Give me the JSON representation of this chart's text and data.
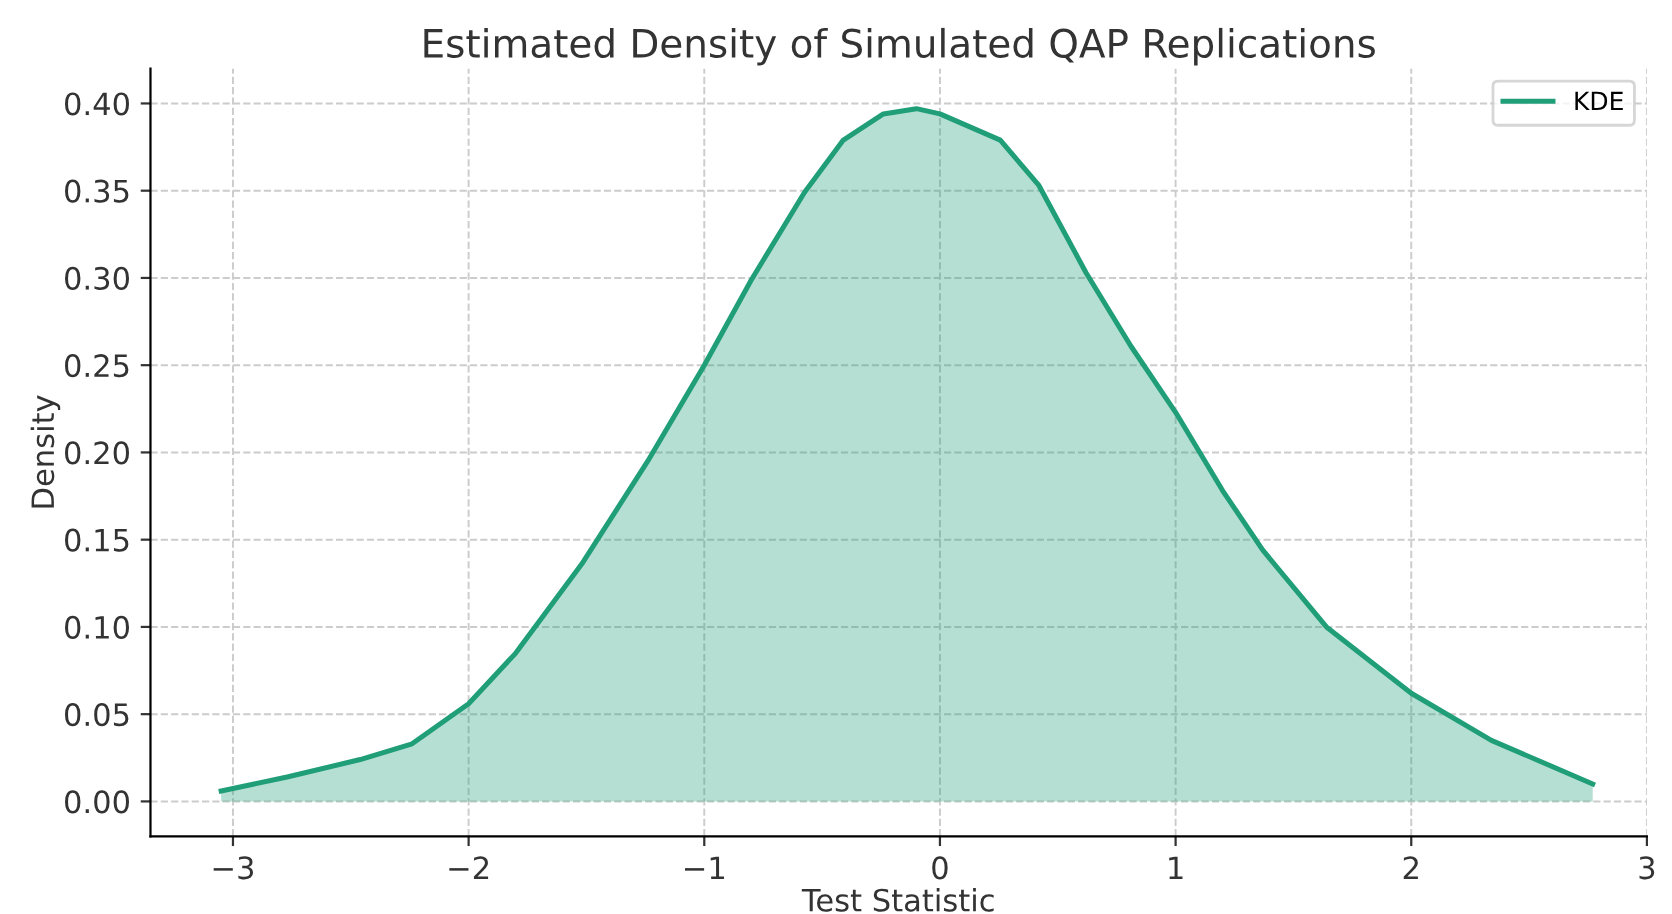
{
  "chart_data": {
    "type": "area",
    "title": "Estimated Density of Simulated QAP Replications",
    "xlabel": "Test Statistic",
    "ylabel": "Density",
    "series": [
      {
        "name": "KDE",
        "color": "#1f9e78",
        "x": [
          -3.05,
          -2.77,
          -2.46,
          -2.24,
          -2.0,
          -1.8,
          -1.52,
          -1.24,
          -1.0,
          -0.8,
          -0.575,
          -0.41,
          -0.24,
          -0.1,
          0.0,
          0.256,
          0.42,
          0.62,
          0.81,
          1.0,
          1.2,
          1.37,
          1.64,
          2.0,
          2.34,
          2.77
        ],
        "values": [
          0.006,
          0.014,
          0.024,
          0.033,
          0.056,
          0.085,
          0.136,
          0.195,
          0.25,
          0.299,
          0.349,
          0.379,
          0.394,
          0.397,
          0.394,
          0.379,
          0.353,
          0.303,
          0.261,
          0.223,
          0.178,
          0.144,
          0.1,
          0.062,
          0.035,
          0.01
        ]
      }
    ],
    "xlim": [
      -3.35,
      3.0
    ],
    "ylim": [
      -0.02,
      0.42
    ],
    "xticks": [
      {
        "value": -3,
        "label": "−3"
      },
      {
        "value": -2,
        "label": "−2"
      },
      {
        "value": -1,
        "label": "−1"
      },
      0,
      1,
      2,
      3
    ],
    "yticks": [
      {
        "value": 0,
        "label": "0.00"
      },
      {
        "value": 0.05,
        "label": "0.05"
      },
      {
        "value": 0.1,
        "label": "0.10"
      },
      {
        "value": 0.15,
        "label": "0.15"
      },
      {
        "value": 0.2,
        "label": "0.20"
      },
      {
        "value": 0.25,
        "label": "0.25"
      },
      {
        "value": 0.3,
        "label": "0.30"
      },
      {
        "value": 0.35,
        "label": "0.35"
      },
      {
        "value": 0.4,
        "label": "0.40"
      }
    ],
    "grid": true,
    "legend": "top right",
    "line_style": "solid",
    "marker": "none"
  }
}
